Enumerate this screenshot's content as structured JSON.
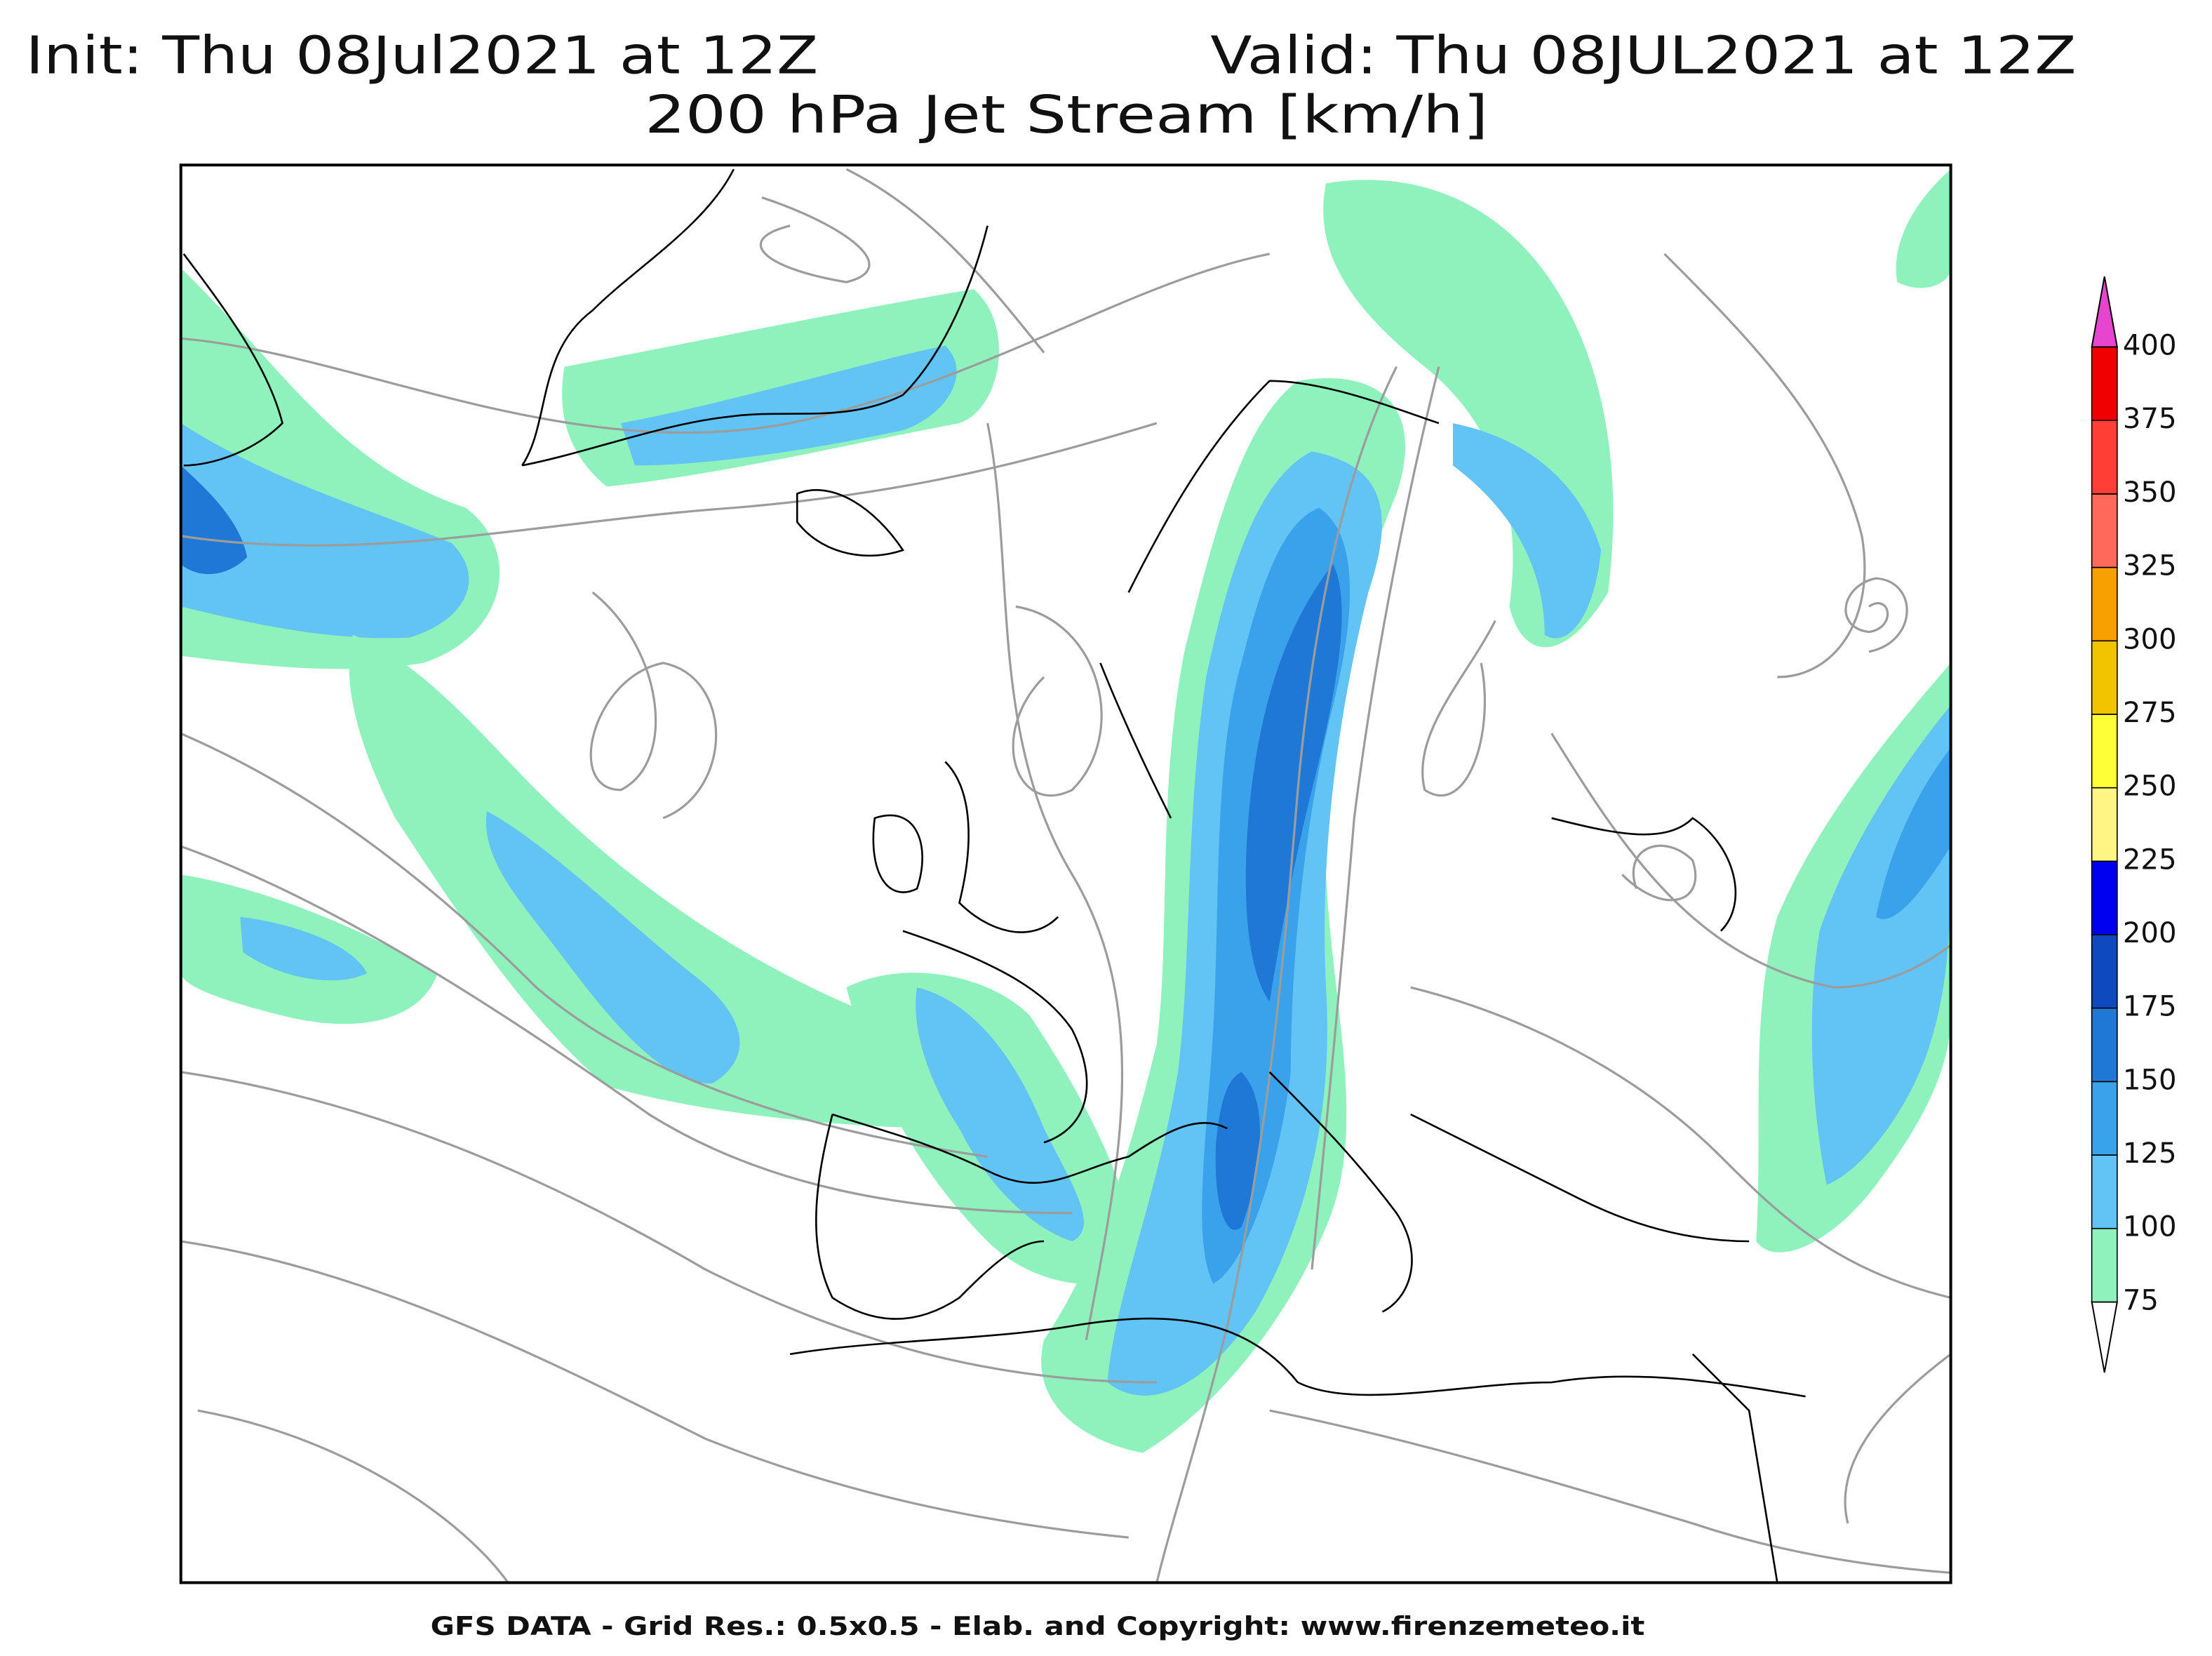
{
  "header": {
    "init": "Init: Thu 08Jul2021 at 12Z",
    "valid": "Valid: Thu 08JUL2021 at 12Z",
    "title": "200 hPa Jet Stream [km/h]"
  },
  "colorbar": {
    "labels": [
      75,
      100,
      125,
      150,
      175,
      200,
      225,
      250,
      275,
      300,
      325,
      350,
      375,
      400
    ],
    "colors": [
      "#8ff2bd",
      "#62c3f5",
      "#3aa2ea",
      "#1f78d6",
      "#0f49c0",
      "#0000f0",
      "#fff585",
      "#ffff38",
      "#f2c400",
      "#f7a000",
      "#ff6a5a",
      "#ff3e36",
      "#f00000",
      "#ff9ccc",
      "#ff6ad0",
      "#e645cf"
    ]
  },
  "footer": "GFS DATA - Grid Res.: 0.5x0.5 - Elab. and Copyright: www.firenzemeteo.it"
}
